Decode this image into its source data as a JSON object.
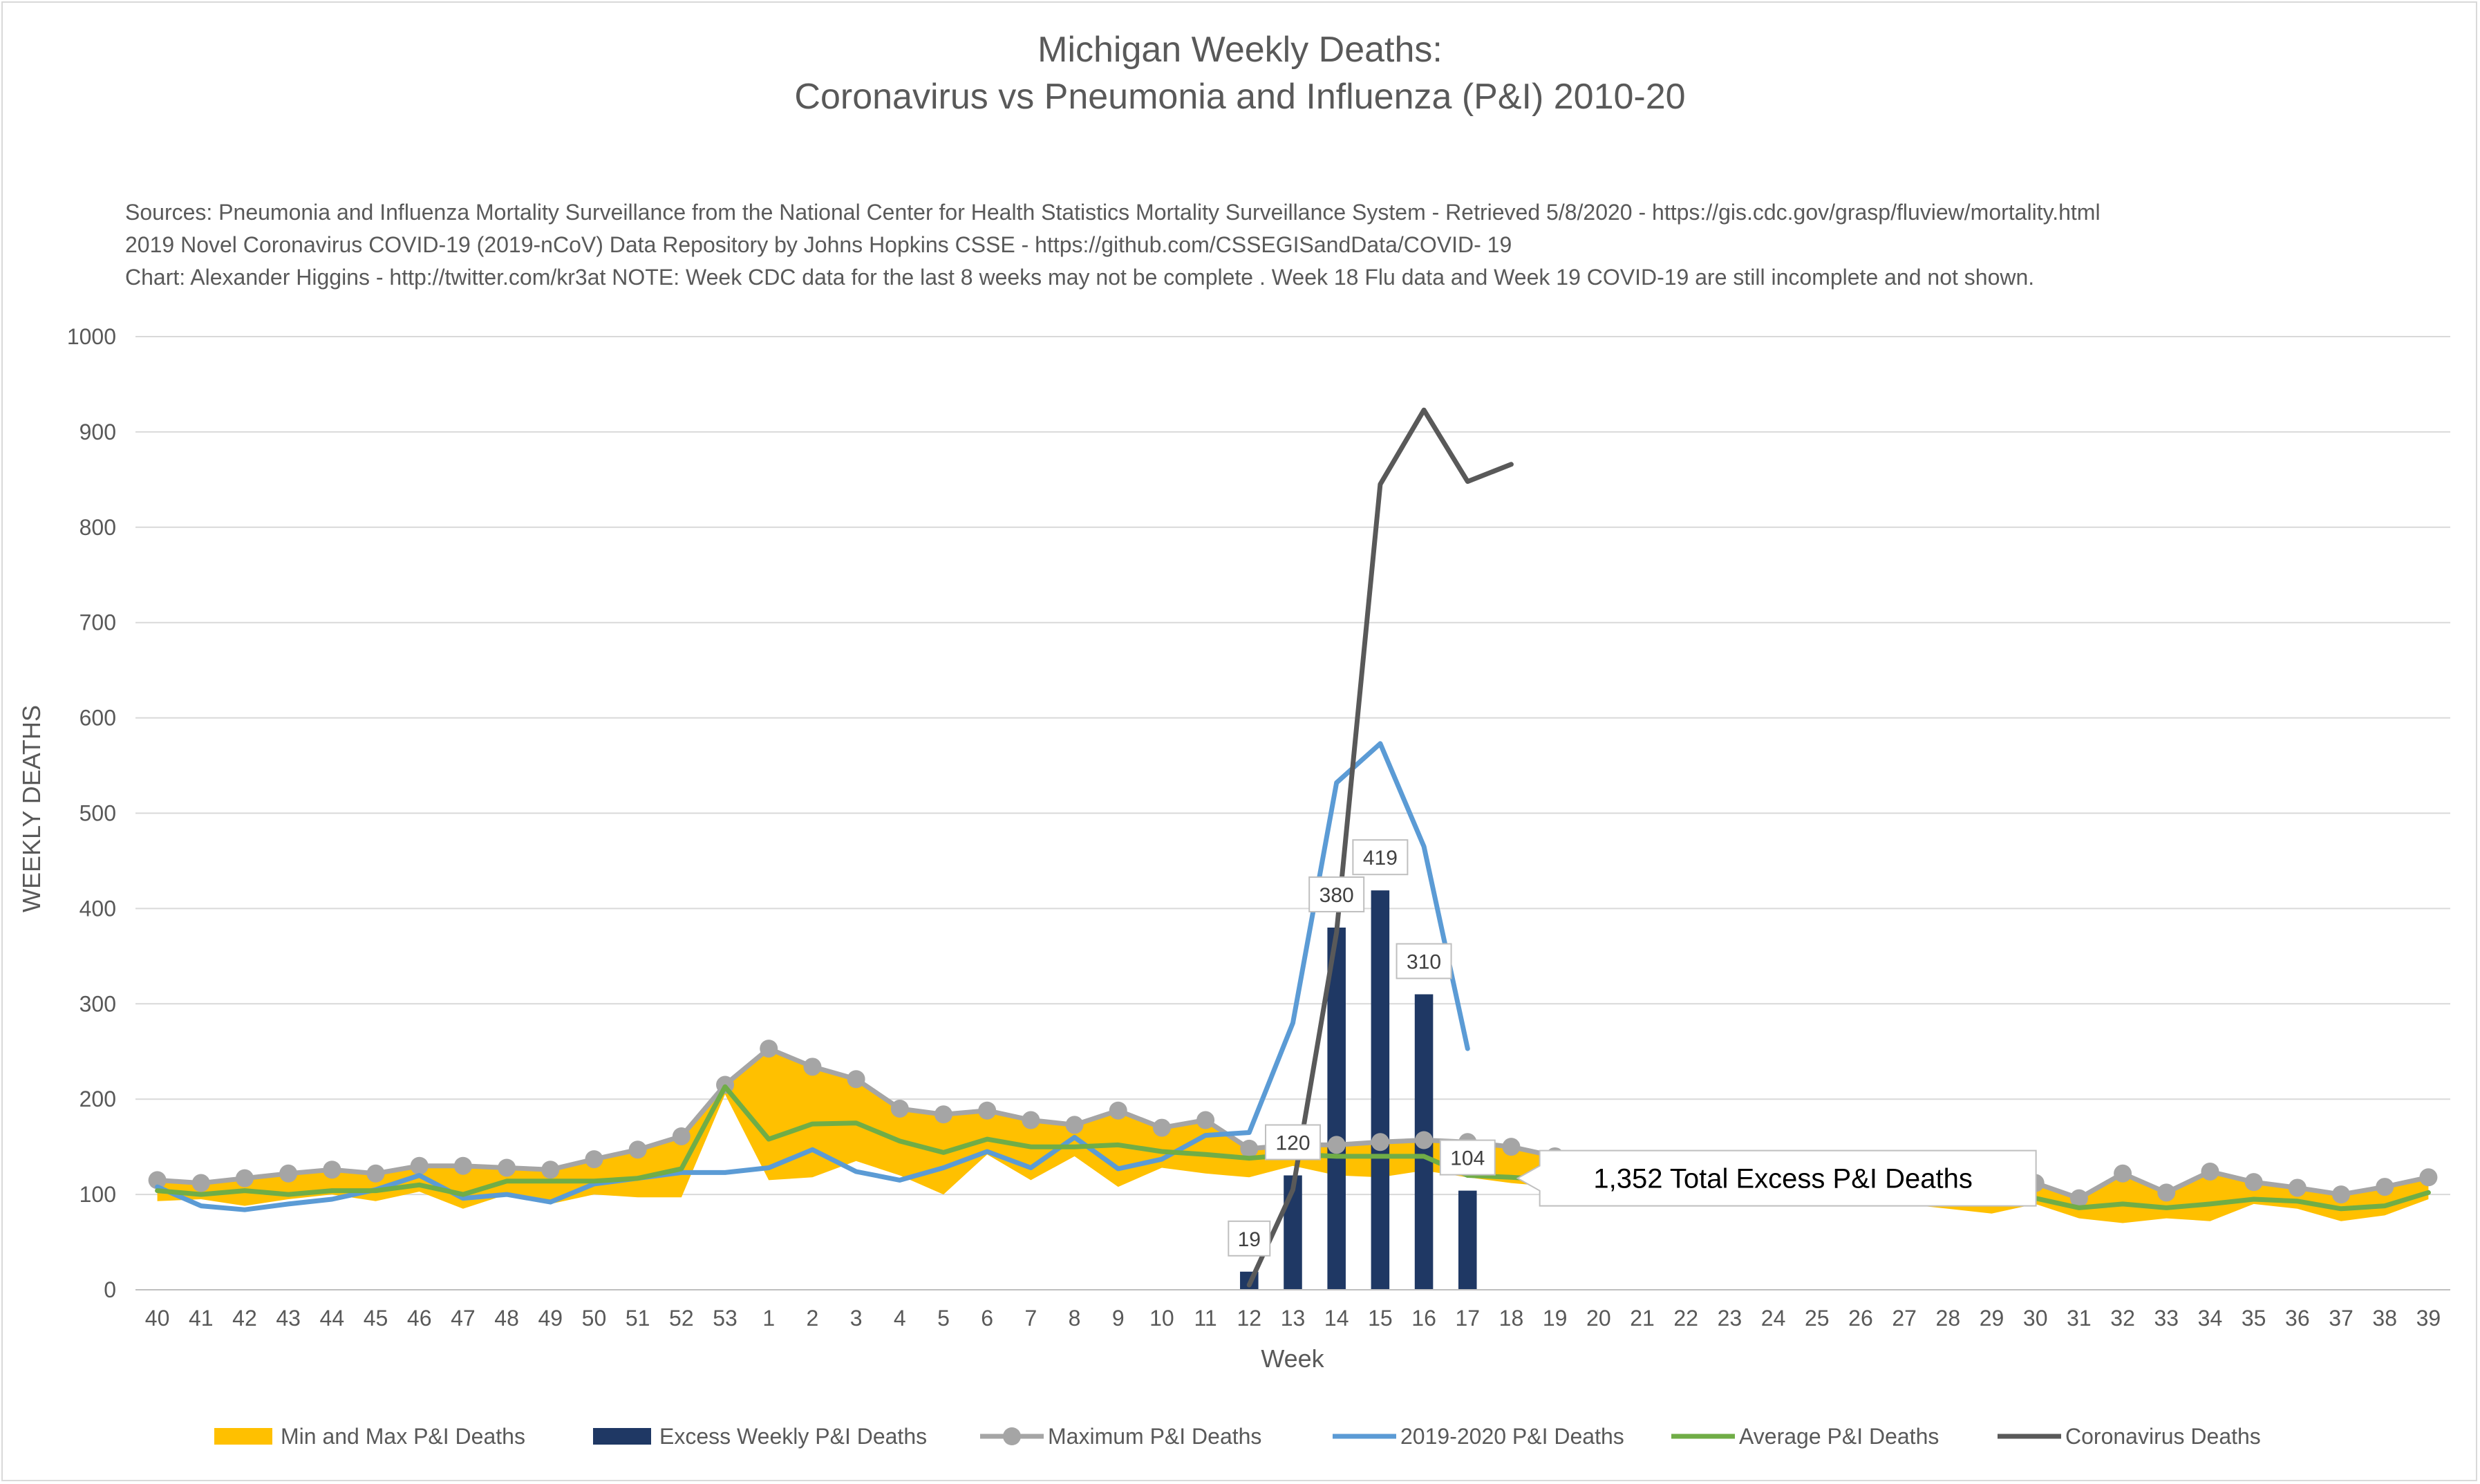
{
  "chart_data": {
    "type": "line",
    "title": [
      "Michigan Weekly Deaths:",
      "Coronavirus vs Pneumonia and Influenza (P&I) 2010-20"
    ],
    "sources": [
      "Sources: Pneumonia and Influenza Mortality Surveillance from the National Center for Health Statistics Mortality Surveillance System - Retrieved 5/8/2020 - https://gis.cdc.gov/grasp/fluview/mortality.html",
      "2019 Novel Coronavirus COVID-19 (2019-nCoV) Data Repository by Johns Hopkins CSSE - https://github.com/CSSEGISandData/COVID- 19",
      "Chart: Alexander Higgins - http://twitter.com/kr3at   NOTE: Week CDC data for the last 8 weeks may not be complete . Week 18 Flu data and Week 19 COVID-19 are still incomplete and not shown."
    ],
    "xlabel": "Week",
    "ylabel": "WEEKLY DEATHS",
    "ylim": [
      0,
      1000
    ],
    "yticks": [
      0,
      100,
      200,
      300,
      400,
      500,
      600,
      700,
      800,
      900,
      1000
    ],
    "grid": true,
    "legend_position": "bottom",
    "categories": [
      "40",
      "41",
      "42",
      "43",
      "44",
      "45",
      "46",
      "47",
      "48",
      "49",
      "50",
      "51",
      "52",
      "53",
      "1",
      "2",
      "3",
      "4",
      "5",
      "6",
      "7",
      "8",
      "9",
      "10",
      "11",
      "12",
      "13",
      "14",
      "15",
      "16",
      "17",
      "18",
      "19",
      "20",
      "21",
      "22",
      "23",
      "24",
      "25",
      "26",
      "27",
      "28",
      "29",
      "30",
      "31",
      "32",
      "33",
      "34",
      "35",
      "36",
      "37",
      "38",
      "39"
    ],
    "band": {
      "name": "Min and Max P&I Deaths",
      "color": "#ffc000",
      "min": [
        93,
        95,
        88,
        95,
        100,
        93,
        103,
        85,
        100,
        90,
        100,
        97,
        97,
        205,
        115,
        118,
        135,
        120,
        100,
        142,
        115,
        140,
        108,
        128,
        122,
        118,
        130,
        120,
        118,
        125,
        118,
        112,
        108,
        102,
        96,
        88,
        92,
        92,
        90,
        95,
        90,
        85,
        80,
        90,
        75,
        70,
        75,
        72,
        90,
        85,
        72,
        78,
        95
      ],
      "max": [
        115,
        112,
        117,
        122,
        126,
        122,
        130,
        130,
        128,
        126,
        137,
        147,
        161,
        215,
        253,
        234,
        221,
        190,
        184,
        188,
        178,
        173,
        188,
        170,
        178,
        148,
        152,
        152,
        155,
        157,
        155,
        150,
        140,
        130,
        125,
        120,
        118,
        120,
        119,
        118,
        118,
        120,
        118,
        112,
        96,
        122,
        102,
        124,
        113,
        107,
        100,
        108,
        118
      ]
    },
    "series": [
      {
        "name": "Excess Weekly P&I Deaths",
        "type": "bar",
        "color": "#1f3864",
        "values": [
          null,
          null,
          null,
          null,
          null,
          null,
          null,
          null,
          null,
          null,
          null,
          null,
          null,
          null,
          null,
          null,
          null,
          null,
          null,
          null,
          null,
          null,
          null,
          null,
          null,
          19,
          120,
          380,
          419,
          310,
          104,
          null,
          null,
          null,
          null,
          null,
          null,
          null,
          null,
          null,
          null,
          null,
          null,
          null,
          null,
          null,
          null,
          null,
          null,
          null,
          null,
          null,
          null
        ],
        "labels": [
          "19",
          "120",
          "380",
          "419",
          "310",
          "104"
        ]
      },
      {
        "name": "Maximum P&I Deaths",
        "type": "line-markers",
        "color": "#a5a5a5",
        "values": [
          115,
          112,
          117,
          122,
          126,
          122,
          130,
          130,
          128,
          126,
          137,
          147,
          161,
          215,
          253,
          234,
          221,
          190,
          184,
          188,
          178,
          173,
          188,
          170,
          178,
          148,
          152,
          152,
          155,
          157,
          155,
          150,
          140,
          130,
          125,
          120,
          118,
          120,
          119,
          118,
          118,
          120,
          118,
          112,
          96,
          122,
          102,
          124,
          113,
          107,
          100,
          108,
          118
        ]
      },
      {
        "name": "2019-2020 P&I Deaths",
        "type": "line",
        "color": "#5b9bd5",
        "values": [
          108,
          88,
          84,
          90,
          95,
          105,
          120,
          96,
          100,
          92,
          111,
          117,
          123,
          123,
          128,
          147,
          124,
          115,
          128,
          145,
          128,
          160,
          127,
          137,
          162,
          165,
          280,
          532,
          573,
          465,
          253,
          null,
          null,
          null,
          null,
          null,
          null,
          null,
          null,
          null,
          null,
          null,
          null,
          null,
          null,
          null,
          null,
          null,
          null,
          null,
          null,
          null,
          null
        ]
      },
      {
        "name": "Average P&I Deaths",
        "type": "line",
        "color": "#70ad47",
        "values": [
          104,
          100,
          104,
          100,
          104,
          104,
          110,
          100,
          114,
          114,
          114,
          117,
          127,
          213,
          158,
          174,
          175,
          156,
          144,
          158,
          150,
          150,
          152,
          145,
          142,
          138,
          142,
          140,
          140,
          140,
          120,
          118,
          115,
          110,
          105,
          100,
          98,
          100,
          98,
          100,
          100,
          98,
          96,
          96,
          86,
          90,
          86,
          90,
          95,
          93,
          85,
          88,
          102
        ]
      },
      {
        "name": "Coronavirus Deaths",
        "type": "line",
        "color": "#595959",
        "values": [
          null,
          null,
          null,
          null,
          null,
          null,
          null,
          null,
          null,
          null,
          null,
          null,
          null,
          null,
          null,
          null,
          null,
          null,
          null,
          null,
          null,
          null,
          null,
          null,
          null,
          5,
          105,
          375,
          845,
          923,
          848,
          866,
          null,
          null,
          null,
          null,
          null,
          null,
          null,
          null,
          null,
          null,
          null,
          null,
          null,
          null,
          null,
          null,
          null,
          null,
          null,
          null,
          null
        ]
      }
    ],
    "annotations": [
      {
        "text": "1,352 Total Excess P&I Deaths",
        "near_category": "19",
        "near_value": 117
      }
    ]
  }
}
